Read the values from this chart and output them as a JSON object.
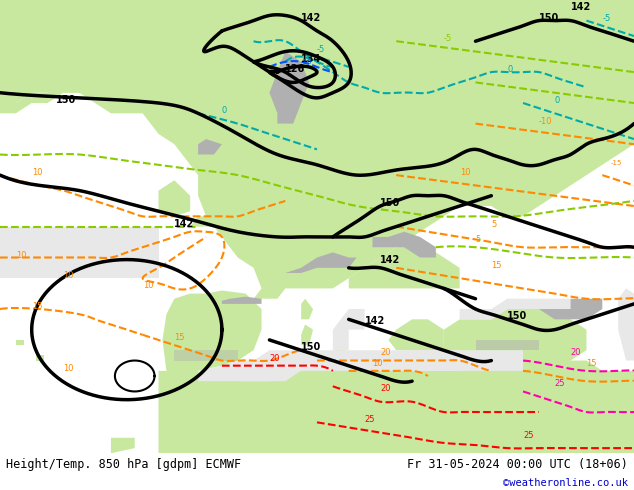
{
  "title_left": "Height/Temp. 850 hPa [gdpm] ECMWF",
  "title_right": "Fr 31-05-2024 00:00 UTC (18+06)",
  "credit": "©weatheronline.co.uk",
  "ocean_color": "#e8e8e8",
  "land_color": "#c8e8a0",
  "land_dark_color": "#a0c878",
  "mountain_color": "#b0b0b0",
  "bottom_bar_color": "#d8d8d8",
  "text_color": "#000000",
  "credit_color": "#0000cc",
  "figsize": [
    6.34,
    4.9
  ],
  "dpi": 100
}
